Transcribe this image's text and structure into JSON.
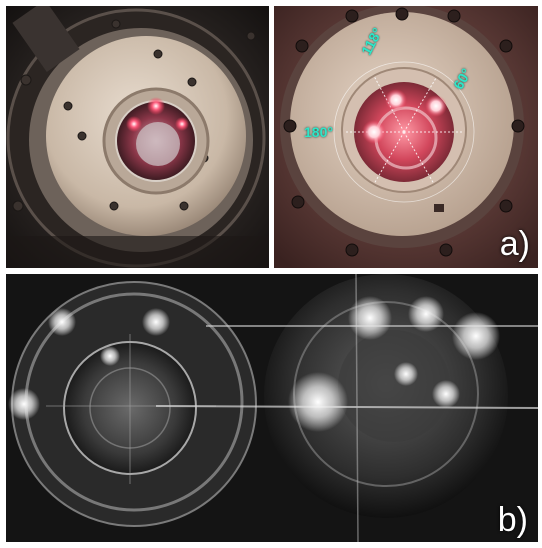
{
  "panels": {
    "a": {
      "letter": "a)",
      "angles": [
        "118°",
        "60°",
        "180°"
      ]
    },
    "b": {
      "letter": "b)"
    }
  },
  "colors": {
    "angle_text": "#2ee6c8",
    "laser_glow": "#ff3a5a",
    "panel_letter": "#ffffff"
  }
}
